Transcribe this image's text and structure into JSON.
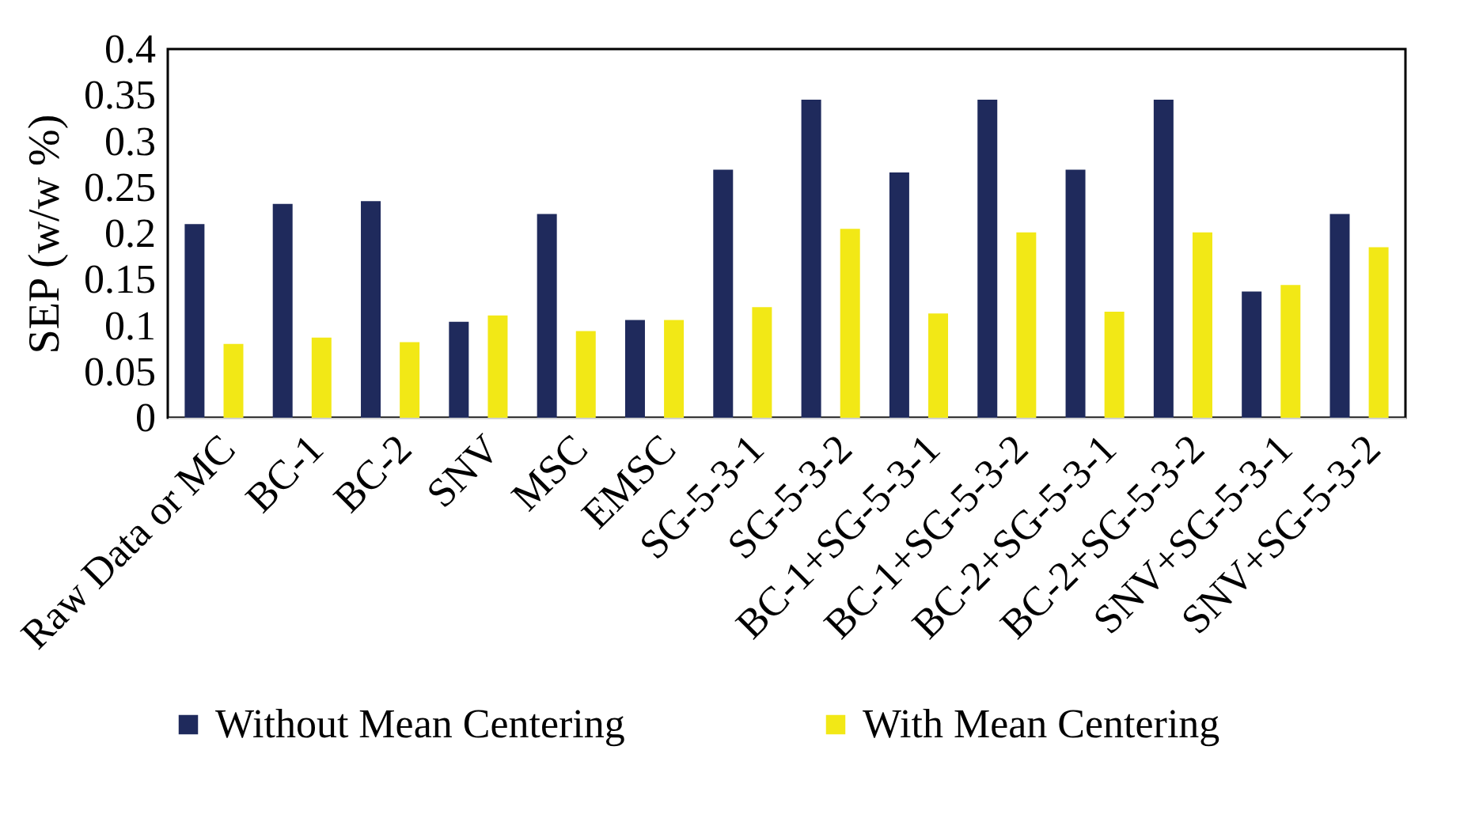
{
  "chart_data": {
    "type": "bar",
    "ylabel": "SEP (w/w %)",
    "categories": [
      "Raw Data or MC",
      "BC-1",
      "BC-2",
      "SNV",
      "MSC",
      "EMSC",
      "SG-5-3-1",
      "SG-5-3-2",
      "BC-1+SG-5-3-1",
      "BC-1+SG-5-3-2",
      "BC-2+SG-5-3-1",
      "BC-2+SG-5-3-2",
      "SNV+SG-5-3-1",
      "SNV+SG-5-3-2"
    ],
    "series": [
      {
        "name": "Without Mean Centering",
        "color": "#1f2a5c",
        "values": [
          0.21,
          0.232,
          0.235,
          0.104,
          0.221,
          0.106,
          0.269,
          0.345,
          0.266,
          0.345,
          0.269,
          0.345,
          0.137,
          0.221
        ]
      },
      {
        "name": "With Mean Centering",
        "color": "#f2e816",
        "values": [
          0.08,
          0.087,
          0.082,
          0.111,
          0.094,
          0.106,
          0.12,
          0.205,
          0.113,
          0.201,
          0.115,
          0.201,
          0.144,
          0.185
        ]
      }
    ],
    "ylim": [
      0,
      0.4
    ],
    "yticks": [
      0,
      0.05,
      0.1,
      0.15,
      0.2,
      0.25,
      0.3,
      0.35,
      0.4
    ],
    "grid": false,
    "legend": "bottom"
  }
}
